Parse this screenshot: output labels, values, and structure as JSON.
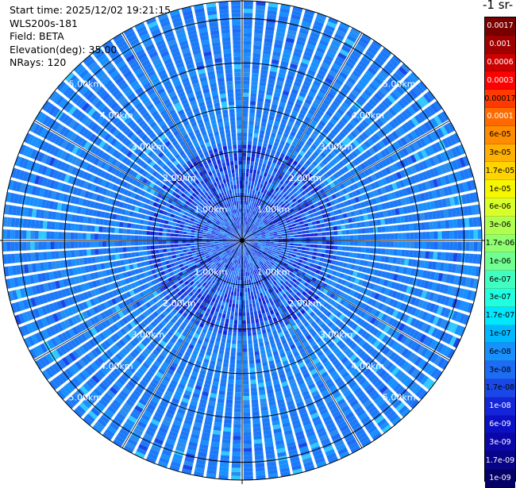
{
  "header": {
    "start_time": "Start time: 2025/12/02 19:21:15",
    "instrument": "WLS200s-181",
    "field": "Field: BETA",
    "elevation": "Elevation(deg): 35.00",
    "nrays": "NRays: 120"
  },
  "colorbar": {
    "title": "-1 sr-",
    "labels": [
      "0.0017",
      "0.001",
      "0.0006",
      "0.0003",
      "0.00017",
      "0.0001",
      "6e-05",
      "3e-05",
      "1.7e-05",
      "1e-05",
      "6e-06",
      "3e-06",
      "1.7e-06",
      "1e-06",
      "6e-07",
      "3e-07",
      "1.7e-07",
      "1e-07",
      "6e-08",
      "3e-08",
      "1.7e-08",
      "1e-08",
      "6e-09",
      "3e-09",
      "1.7e-09",
      "1e-09"
    ],
    "colors": [
      "#7a0000",
      "#a00000",
      "#cc0000",
      "#ff0000",
      "#ff3a00",
      "#ff6a00",
      "#ff8c00",
      "#ffb000",
      "#ffd400",
      "#f6f600",
      "#d8ff2a",
      "#b0ff50",
      "#90ff70",
      "#70ff90",
      "#40ffc0",
      "#20ffe0",
      "#00e8ff",
      "#00b8ff",
      "#1890ff",
      "#1c6cf5",
      "#1a48e8",
      "#1424d8",
      "#0c10c4",
      "#0a06a8",
      "#080488",
      "#050066"
    ],
    "text_colors": [
      "#ffffff",
      "#ffffff",
      "#ffffff",
      "#ffffff",
      "#000000",
      "#ffffff",
      "#000000",
      "#000000",
      "#000000",
      "#000000",
      "#000000",
      "#000000",
      "#000000",
      "#000000",
      "#000000",
      "#000000",
      "#000000",
      "#000000",
      "#000000",
      "#000000",
      "#000000",
      "#ffffff",
      "#ffffff",
      "#ffffff",
      "#ffffff",
      "#ffffff"
    ]
  },
  "chart_data": {
    "type": "heatmap",
    "projection": "polar PPI",
    "field": "BETA",
    "nrays": 120,
    "range_max_km": 5.4,
    "rings": [
      {
        "range_km": 1.0,
        "label": "1.00km"
      },
      {
        "range_km": 2.0,
        "label": "2.00km"
      },
      {
        "range_km": 3.0,
        "label": "3.00km"
      },
      {
        "range_km": 4.0,
        "label": "4.00km"
      },
      {
        "range_km": 5.0,
        "label": "5.00km"
      }
    ],
    "dominant_value_range": [
      "1.7e-08",
      "1e-07"
    ],
    "radials_deg": [
      0,
      30,
      60,
      90,
      120,
      150,
      180,
      210,
      240,
      270,
      300,
      330
    ]
  }
}
